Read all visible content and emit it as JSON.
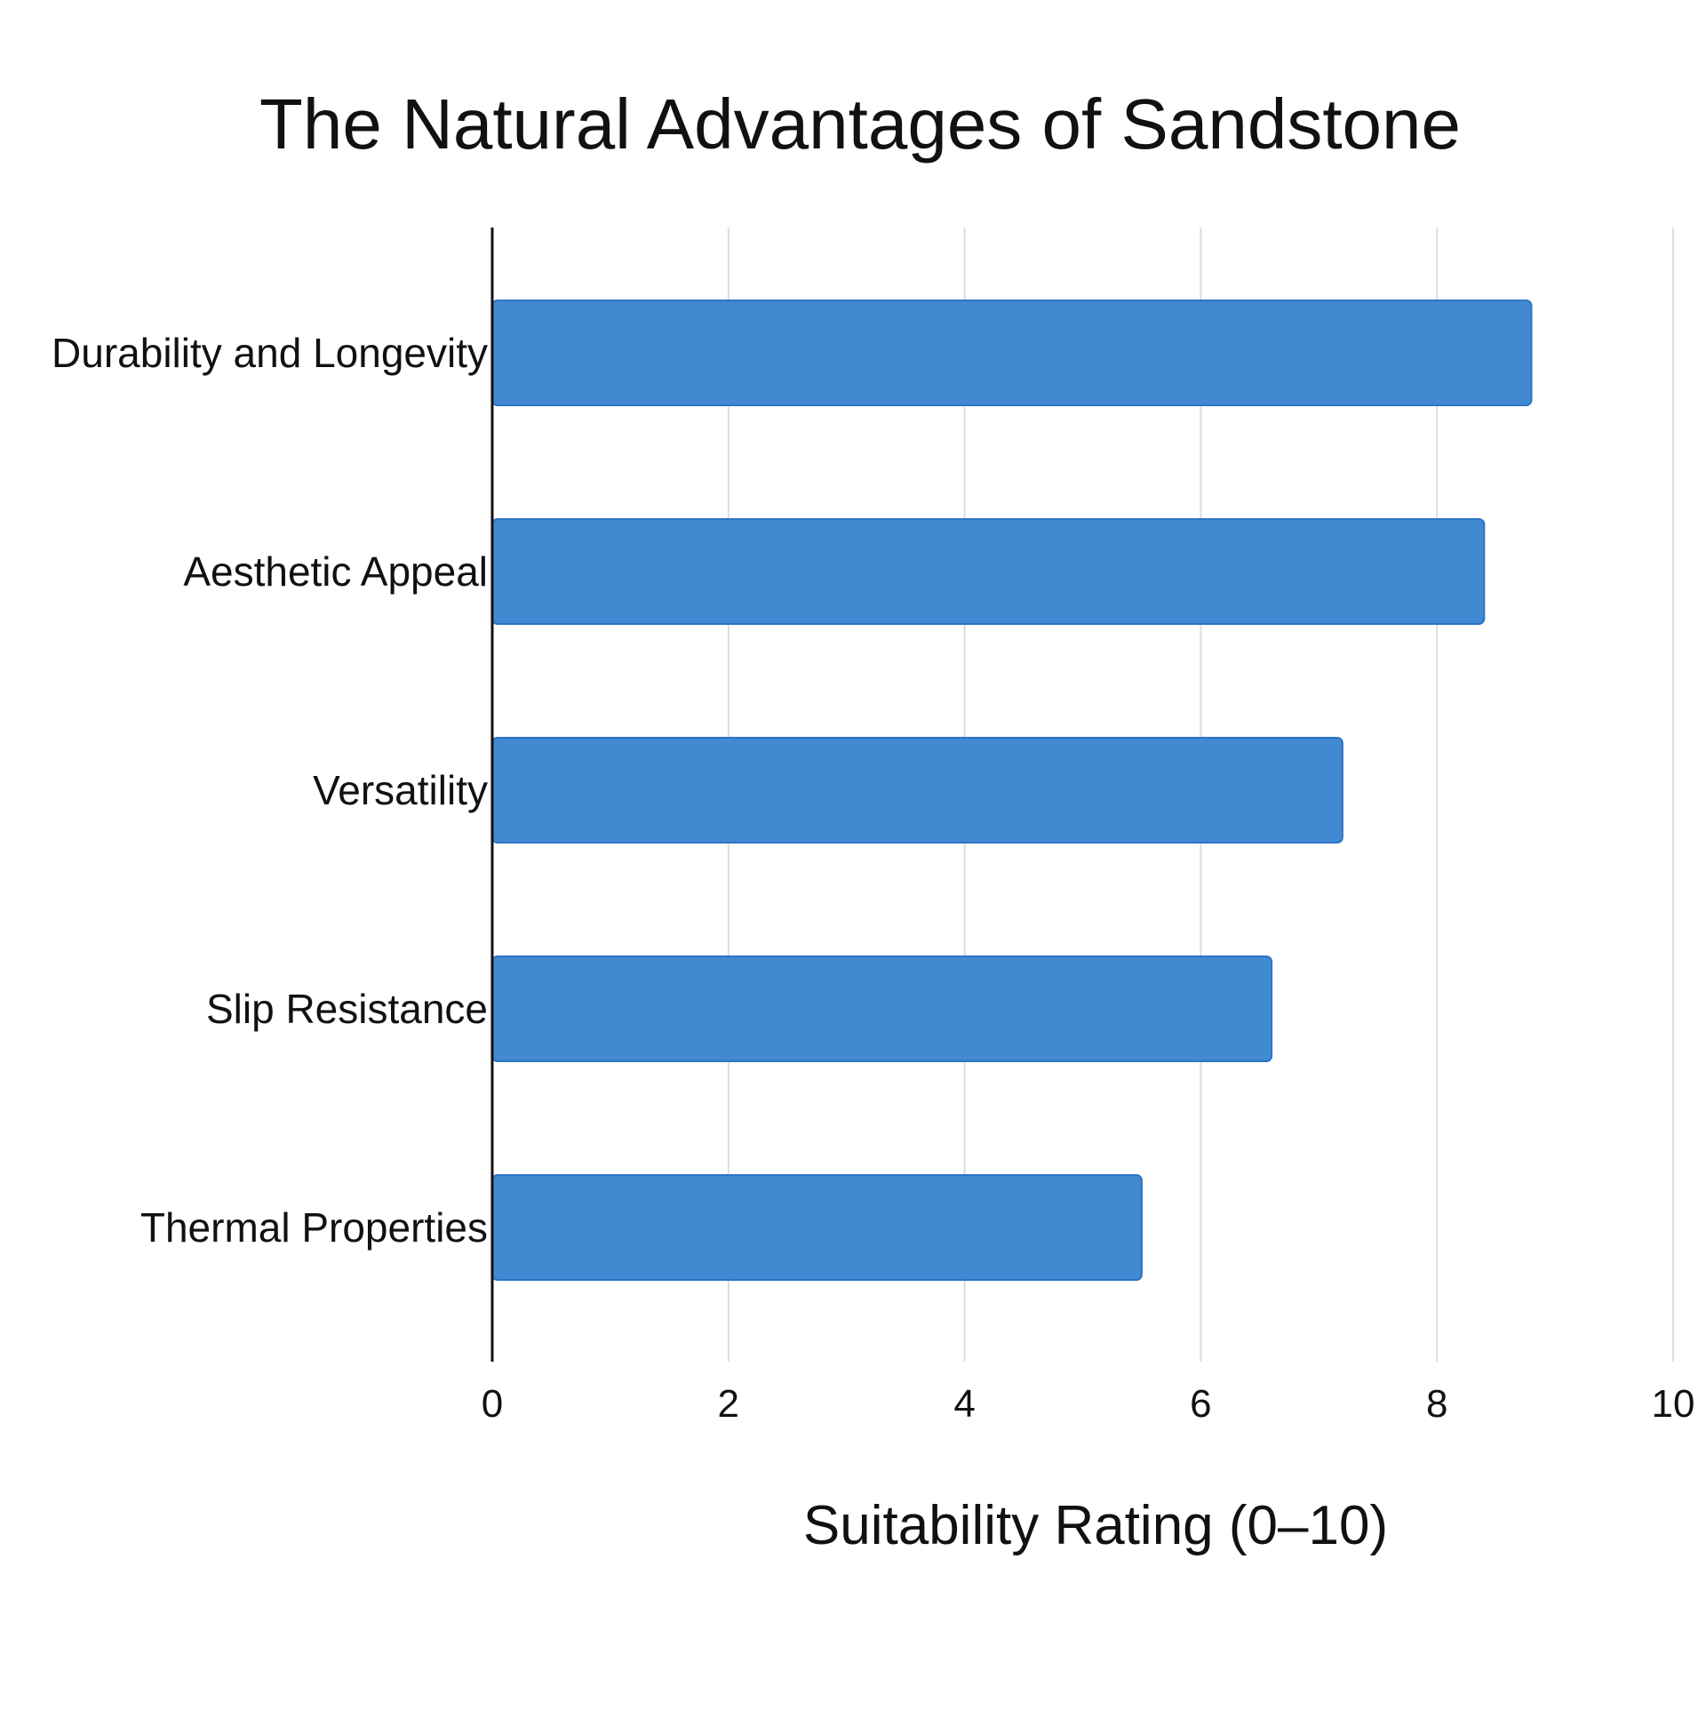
{
  "chart_data": {
    "type": "bar",
    "orientation": "horizontal",
    "title": "The Natural Advantages of Sandstone",
    "xlabel": "Suitability Rating (0–10)",
    "ylabel": "",
    "categories": [
      "Durability and Longevity",
      "Aesthetic Appeal",
      "Versatility",
      "Slip Resistance",
      "Thermal Properties"
    ],
    "values": [
      8.8,
      8.4,
      7.2,
      6.6,
      5.5
    ],
    "xlim": [
      0,
      10
    ],
    "xticks": [
      "0",
      "2",
      "4",
      "6",
      "8",
      "10"
    ],
    "grid": true,
    "legend": "none",
    "colors": {
      "bar_fill": "#418ad2",
      "bar_stroke": "#2d74c4",
      "grid": "#dddddd",
      "axis": "#111111"
    }
  }
}
